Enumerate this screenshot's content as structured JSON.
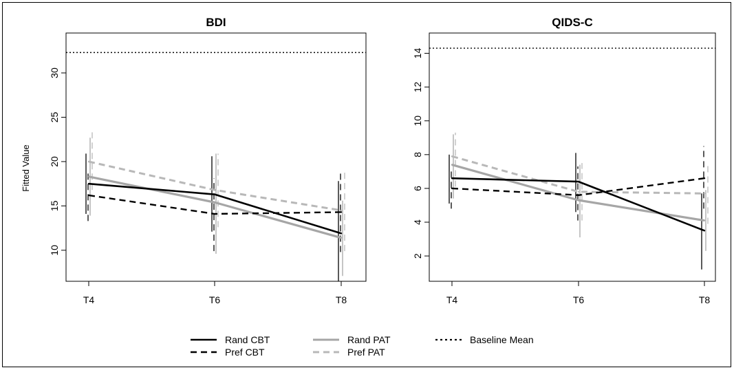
{
  "figure": {
    "ylabel": "Fitted Value"
  },
  "colors": {
    "Rand CBT": "#000000",
    "Pref CBT": "#000000",
    "Rand PAT": "#a6a6a6",
    "Pref PAT": "#b8b8b8",
    "Baseline Mean": "#000000"
  },
  "legend": [
    {
      "label": "Rand CBT",
      "style": "solid",
      "color": "#000000"
    },
    {
      "label": "Pref CBT",
      "style": "dashed",
      "color": "#000000"
    },
    {
      "label": "Rand PAT",
      "style": "solid",
      "color": "#a6a6a6"
    },
    {
      "label": "Pref PAT",
      "style": "dashed",
      "color": "#b8b8b8"
    },
    {
      "label": "Baseline Mean",
      "style": "dotted",
      "color": "#000000"
    }
  ],
  "chart_data": [
    {
      "type": "line",
      "title": "BDI",
      "ylabel": "Fitted Value",
      "categories": [
        "T4",
        "T6",
        "T8"
      ],
      "ylim": [
        6.5,
        34.5
      ],
      "yticks": [
        10,
        15,
        20,
        25,
        30
      ],
      "baseline_mean": 32.3,
      "series": [
        {
          "name": "Rand CBT",
          "style": "solid",
          "values": [
            17.5,
            16.3,
            11.9
          ],
          "lower": [
            14.1,
            12.1,
            6.5
          ],
          "upper": [
            20.9,
            20.6,
            17.8
          ]
        },
        {
          "name": "Pref CBT",
          "style": "dashed",
          "values": [
            16.2,
            14.1,
            14.3
          ],
          "lower": [
            13.3,
            9.9,
            9.8
          ],
          "upper": [
            19.0,
            18.1,
            18.9
          ]
        },
        {
          "name": "Rand PAT",
          "style": "solid",
          "values": [
            18.3,
            15.4,
            11.4
          ],
          "lower": [
            13.9,
            9.6,
            7.1
          ],
          "upper": [
            22.7,
            20.9,
            15.6
          ]
        },
        {
          "name": "Pref PAT",
          "style": "dashed",
          "values": [
            20.0,
            16.8,
            14.5
          ],
          "lower": [
            16.8,
            12.6,
            9.9
          ],
          "upper": [
            23.3,
            20.9,
            19.2
          ]
        }
      ]
    },
    {
      "type": "line",
      "title": "QIDS-C",
      "ylabel": "",
      "categories": [
        "T4",
        "T6",
        "T8"
      ],
      "ylim": [
        0.5,
        15.2
      ],
      "yticks": [
        2,
        4,
        6,
        8,
        10,
        12,
        14
      ],
      "baseline_mean": 14.3,
      "series": [
        {
          "name": "Rand CBT",
          "style": "solid",
          "values": [
            6.6,
            6.4,
            3.5
          ],
          "lower": [
            5.1,
            4.6,
            1.2
          ],
          "upper": [
            8.0,
            8.1,
            5.7
          ]
        },
        {
          "name": "Pref CBT",
          "style": "dashed",
          "values": [
            6.0,
            5.6,
            6.6
          ],
          "lower": [
            4.8,
            4.1,
            4.8
          ],
          "upper": [
            7.2,
            7.3,
            8.5
          ]
        },
        {
          "name": "Rand PAT",
          "style": "solid",
          "values": [
            7.4,
            5.3,
            4.1
          ],
          "lower": [
            5.4,
            3.1,
            2.3
          ],
          "upper": [
            9.2,
            7.4,
            5.9
          ]
        },
        {
          "name": "Pref PAT",
          "style": "dashed",
          "values": [
            7.9,
            5.8,
            5.7
          ],
          "lower": [
            6.1,
            4.1,
            3.9
          ],
          "upper": [
            9.3,
            7.5,
            7.5
          ]
        }
      ]
    }
  ]
}
